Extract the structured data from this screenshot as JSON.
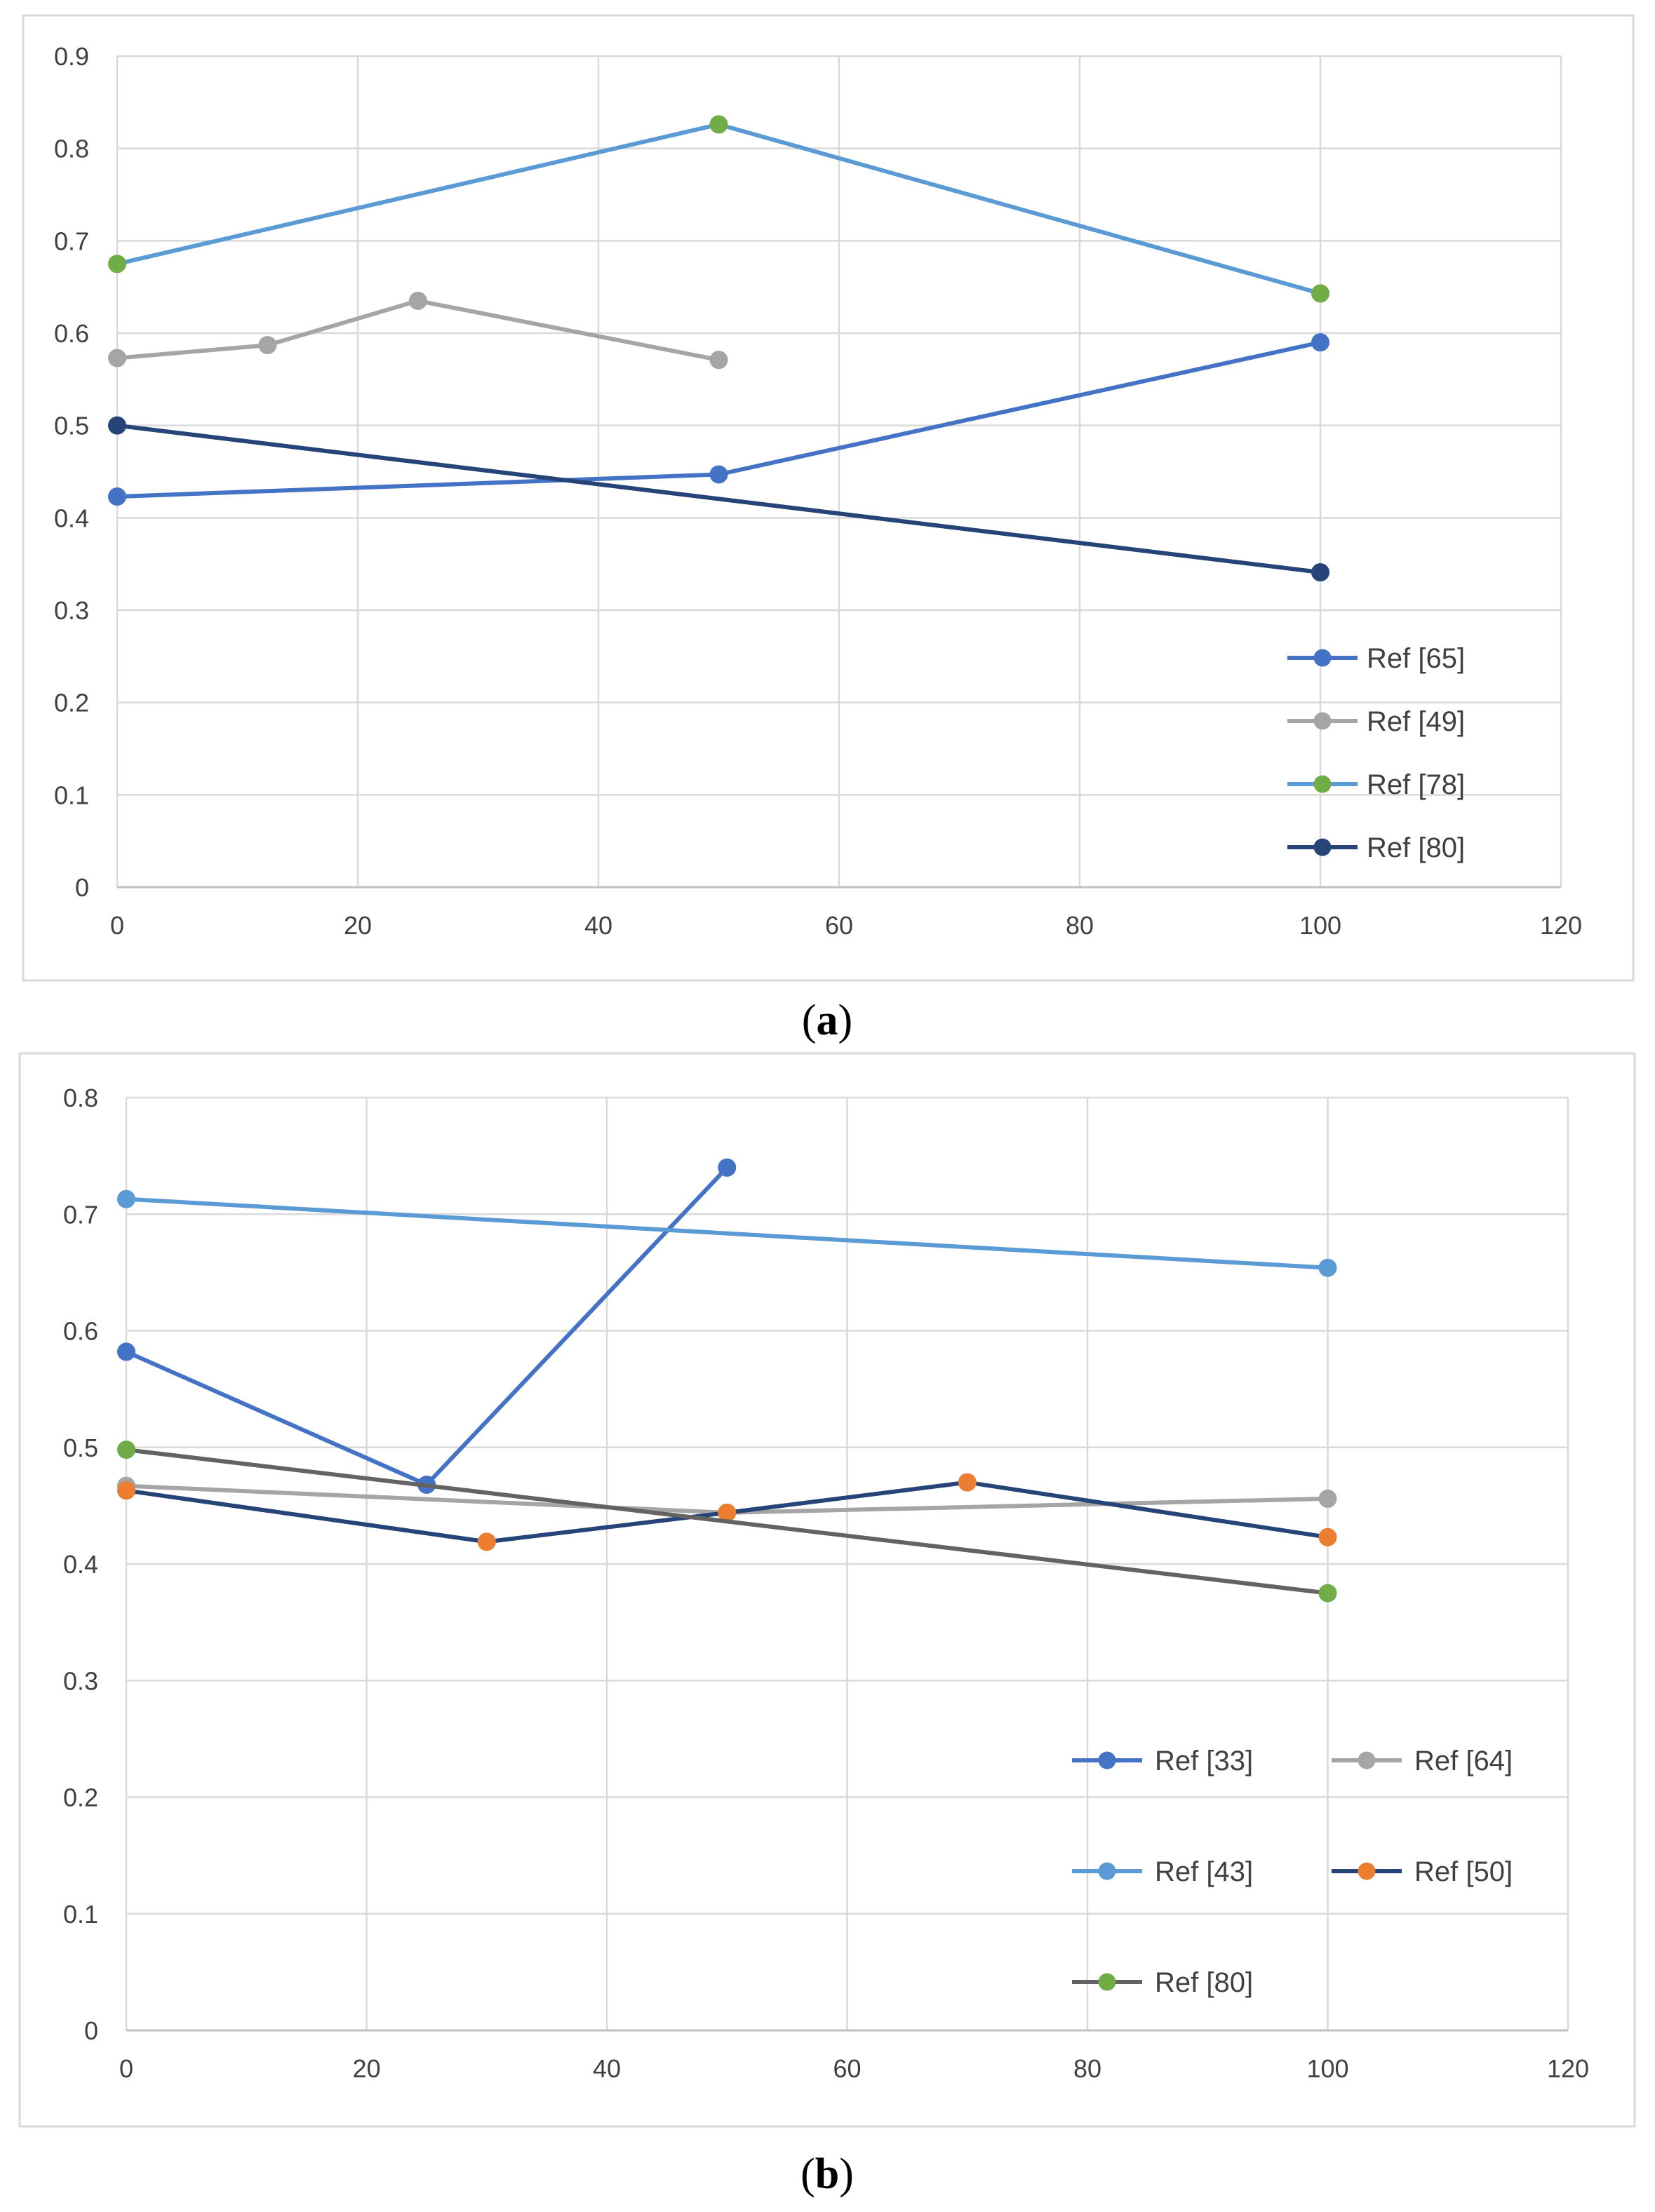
{
  "chart_data": [
    {
      "type": "line",
      "caption_letter": "a",
      "title": "",
      "xlabel": "",
      "ylabel": "",
      "xlim": [
        0,
        120
      ],
      "ylim": [
        0,
        0.9
      ],
      "xticks": [
        "0",
        "20",
        "40",
        "60",
        "80",
        "100",
        "120"
      ],
      "yticks": [
        "0",
        "0.1",
        "0.2",
        "0.3",
        "0.4",
        "0.5",
        "0.6",
        "0.7",
        "0.8",
        "0.9"
      ],
      "grid": true,
      "legend_position": "bottom-right",
      "series": [
        {
          "name": "Ref [65]",
          "color": "#4472C4",
          "marker_color": "#4472C4",
          "x": [
            0,
            50,
            100
          ],
          "y": [
            0.423,
            0.447,
            0.59
          ]
        },
        {
          "name": "Ref [49]",
          "color": "#A5A5A5",
          "marker_color": "#A5A5A5",
          "x": [
            0,
            12.5,
            25,
            50
          ],
          "y": [
            0.573,
            0.587,
            0.635,
            0.571
          ]
        },
        {
          "name": "Ref [78]",
          "color": "#5B9BD5",
          "marker_color": "#70AD47",
          "x": [
            0,
            50,
            100
          ],
          "y": [
            0.675,
            0.826,
            0.643
          ]
        },
        {
          "name": "Ref [80]",
          "color": "#264478",
          "marker_color": "#264478",
          "x": [
            0,
            100
          ],
          "y": [
            0.5,
            0.341
          ]
        }
      ]
    },
    {
      "type": "line",
      "caption_letter": "b",
      "title": "",
      "xlabel": "",
      "ylabel": "",
      "xlim": [
        0,
        120
      ],
      "ylim": [
        0,
        0.8
      ],
      "xticks": [
        "0",
        "20",
        "40",
        "60",
        "80",
        "100",
        "120"
      ],
      "yticks": [
        "0",
        "0.1",
        "0.2",
        "0.3",
        "0.4",
        "0.5",
        "0.6",
        "0.7",
        "0.8"
      ],
      "grid": true,
      "legend_position": "bottom-right",
      "series": [
        {
          "name": "Ref [33]",
          "color": "#4472C4",
          "marker_color": "#4472C4",
          "x": [
            0,
            25,
            50
          ],
          "y": [
            0.582,
            0.468,
            0.74
          ]
        },
        {
          "name": "Ref [64]",
          "color": "#A5A5A5",
          "marker_color": "#A5A5A5",
          "x": [
            0,
            50,
            100
          ],
          "y": [
            0.467,
            0.444,
            0.456
          ]
        },
        {
          "name": "Ref [43]",
          "color": "#5B9BD5",
          "marker_color": "#5B9BD5",
          "x": [
            0,
            100
          ],
          "y": [
            0.713,
            0.654
          ]
        },
        {
          "name": "Ref [50]",
          "color": "#264478",
          "marker_color": "#ED7D31",
          "x": [
            0,
            30,
            50,
            70,
            100
          ],
          "y": [
            0.463,
            0.419,
            0.444,
            0.47,
            0.423
          ]
        },
        {
          "name": "Ref [80]",
          "color": "#636363",
          "marker_color": "#70AD47",
          "x": [
            0,
            100
          ],
          "y": [
            0.498,
            0.375
          ]
        }
      ]
    }
  ]
}
